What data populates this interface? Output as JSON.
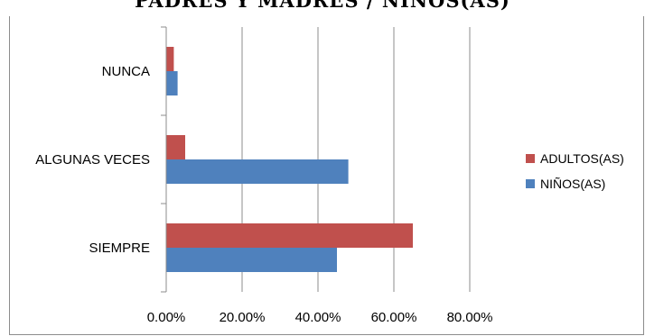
{
  "chart_data": {
    "type": "bar",
    "orientation": "horizontal",
    "title": "PADRES Y MADRES / NIÑOS(AS)",
    "categories": [
      "SIEMPRE",
      "ALGUNAS VECES",
      "NUNCA"
    ],
    "series": [
      {
        "name": "ADULTOS(AS)",
        "color": "#c0504d",
        "values": [
          0.65,
          0.05,
          0.02
        ]
      },
      {
        "name": "NIÑOS(AS)",
        "color": "#4f81bd",
        "values": [
          0.45,
          0.48,
          0.03
        ]
      }
    ],
    "xlim": [
      0,
      0.8
    ],
    "xticks": [
      "0.00%",
      "20.00%",
      "40.00%",
      "60.00%",
      "80.00%"
    ],
    "grid": true,
    "legend_position": "right"
  }
}
